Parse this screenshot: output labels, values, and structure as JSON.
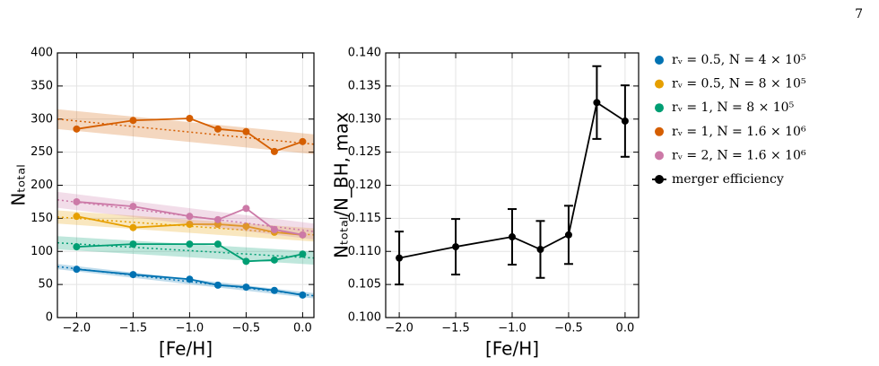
{
  "page_number": "7",
  "chart_data": [
    {
      "type": "line",
      "x_label": "[Fe/H]",
      "y_label": "Nₜₒₜₐₗ",
      "x": [
        -2,
        -1.5,
        -1,
        -0.75,
        -0.5,
        -0.25,
        0
      ],
      "xlim": [
        -2.17,
        0.1
      ],
      "ylim": [
        0,
        400
      ],
      "xticks": [
        {
          "value": -2,
          "label": "−2.0"
        },
        {
          "value": -1.5,
          "label": "−1.5"
        },
        {
          "value": -1,
          "label": "−1.0"
        },
        {
          "value": -0.5,
          "label": "−0.5"
        },
        {
          "value": 0,
          "label": "0.0"
        }
      ],
      "yticks": [
        0,
        50,
        100,
        150,
        200,
        250,
        300,
        350,
        400
      ],
      "grid": true,
      "series": [
        {
          "name": "rᵥ = 0.5,  N = 4 × 10⁵",
          "color": "#0072b2",
          "values": [
            73,
            65,
            58,
            49,
            46,
            41,
            34
          ],
          "fit": {
            "x": [
              -2.17,
              0.1
            ],
            "values": [
              77,
              33
            ],
            "band": 4
          }
        },
        {
          "name": "rᵥ = 0.5,  N = 8 × 10⁵",
          "color": "#e69f00",
          "values": [
            153,
            136,
            141,
            141,
            138,
            129,
            125
          ],
          "fit": {
            "x": [
              -2.17,
              0.1
            ],
            "values": [
              152,
              125
            ],
            "band": 10
          }
        },
        {
          "name": "rᵥ = 1,  N = 8 × 10⁵",
          "color": "#009e73",
          "values": [
            107,
            111,
            111,
            111,
            85,
            87,
            96
          ],
          "fit": {
            "x": [
              -2.17,
              0.1
            ],
            "values": [
              113,
              90
            ],
            "band": 10
          }
        },
        {
          "name": "rᵥ = 1,  N = 1.6 × 10⁶",
          "color": "#d55e00",
          "values": [
            285,
            298,
            301,
            285,
            281,
            251,
            266
          ],
          "fit": {
            "x": [
              -2.17,
              0.1
            ],
            "values": [
              300,
              262
            ],
            "band": 15
          }
        },
        {
          "name": "rᵥ = 2,  N = 1.6 × 10⁶",
          "color": "#cc79a7",
          "values": [
            175,
            168,
            153,
            148,
            165,
            133,
            125
          ],
          "fit": {
            "x": [
              -2.17,
              0.1
            ],
            "values": [
              178,
              130
            ],
            "band": 12
          }
        }
      ]
    },
    {
      "type": "errorbar",
      "x_label": "[Fe/H]",
      "y_label": "Nₜₒₜₐₗ/N_BH, max",
      "x": [
        -2,
        -1.5,
        -1,
        -0.75,
        -0.5,
        -0.25,
        0
      ],
      "xlim": [
        -2.12,
        0.12
      ],
      "ylim": [
        0.1,
        0.14
      ],
      "xticks": [
        {
          "value": -2,
          "label": "−2.0"
        },
        {
          "value": -1.5,
          "label": "−1.5"
        },
        {
          "value": -1,
          "label": "−1.0"
        },
        {
          "value": -0.5,
          "label": "−0.5"
        },
        {
          "value": 0,
          "label": "0.0"
        }
      ],
      "yticks": [
        {
          "value": 0.1,
          "label": "0.100"
        },
        {
          "value": 0.105,
          "label": "0.105"
        },
        {
          "value": 0.11,
          "label": "0.110"
        },
        {
          "value": 0.115,
          "label": "0.115"
        },
        {
          "value": 0.12,
          "label": "0.120"
        },
        {
          "value": 0.125,
          "label": "0.125"
        },
        {
          "value": 0.13,
          "label": "0.130"
        },
        {
          "value": 0.135,
          "label": "0.135"
        },
        {
          "value": 0.14,
          "label": "0.140"
        }
      ],
      "grid": true,
      "series": [
        {
          "name": "merger efficiency",
          "color": "#000000",
          "values": [
            0.109,
            0.1107,
            0.1122,
            0.1103,
            0.1125,
            0.1325,
            0.1297
          ],
          "errors": [
            0.004,
            0.0042,
            0.0042,
            0.0043,
            0.0044,
            0.0055,
            0.0054
          ]
        }
      ]
    }
  ]
}
